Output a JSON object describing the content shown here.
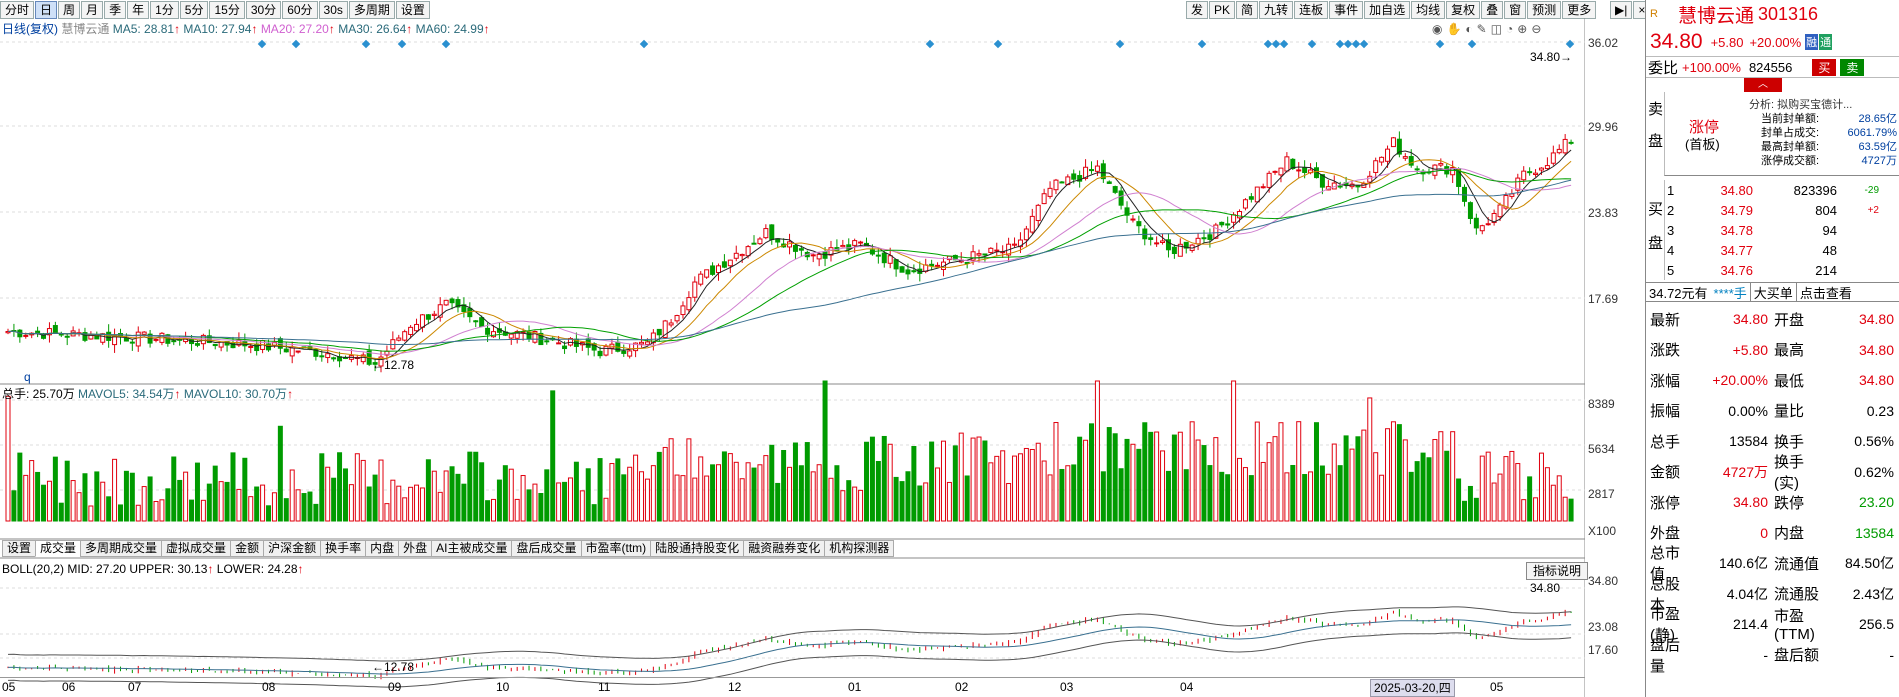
{
  "toolbar": {
    "left": [
      "分时",
      "日",
      "周",
      "月",
      "季",
      "年",
      "1分",
      "5分",
      "15分",
      "30分",
      "60分",
      "30s",
      "多周期",
      "设置"
    ],
    "active": "日",
    "right": [
      "发",
      "PK",
      "简",
      "九转",
      "连板",
      "事件",
      "加自选",
      "均线",
      "复权",
      "叠",
      "窗",
      "预测",
      "更多"
    ]
  },
  "price_legend": {
    "period": "日线(复权)",
    "name": "慧博云通",
    "ma5": "MA5: 28.81",
    "ma10": "MA10: 27.94",
    "ma20": "MA20: 27.20",
    "ma30": "MA30: 26.64",
    "ma60": "MA60: 24.99"
  },
  "price_axis": [
    "36.02",
    "29.96",
    "23.83",
    "17.69"
  ],
  "price_markers": {
    "high": "34.80",
    "low": "12.78",
    "q": "q"
  },
  "volume_legend": {
    "total": "总手: 25.70万",
    "mavol5": "MAVOL5: 34.54万",
    "mavol10": "MAVOL10: 30.70万"
  },
  "volume_axis": [
    "8389",
    "5634",
    "2817"
  ],
  "volume_unit": "X100",
  "indicator_tabs": [
    "设置",
    "成交量",
    "多周期成交量",
    "虚拟成交量",
    "金额",
    "沪深金额",
    "换手率",
    "内盘",
    "外盘",
    "AI主被成交量",
    "盘后成交量",
    "市盈率(ttm)",
    "陆股通持股变化",
    "融资融券变化",
    "机构探测器"
  ],
  "indicator_active": "成交量",
  "boll_legend": {
    "head": "BOLL(20,2) MID: 27.20",
    "upper": "UPPER: 30.13",
    "lower": "LOWER: 24.28"
  },
  "boll_axis": [
    "34.80",
    "23.08",
    "17.60"
  ],
  "boll_markers": {
    "high": "34.80",
    "low": "12.78"
  },
  "indicator_help": "指标说明",
  "x_axis": [
    "05",
    "06",
    "07",
    "08",
    "09",
    "10",
    "11",
    "12",
    "01",
    "02",
    "03",
    "04",
    "05"
  ],
  "x_cursor": "2025-03-20,四",
  "stock": {
    "name": "慧博云通",
    "code": "301316",
    "price": "34.80",
    "change": "+5.80",
    "pct": "+20.00%",
    "badge1": "融",
    "badge2": "通"
  },
  "weibi": {
    "label": "委比",
    "value": "+100.00%",
    "diff": "824556",
    "buy": "买",
    "sell": "卖"
  },
  "sell_side": {
    "label1": "卖",
    "label2": "盘"
  },
  "limit_status": {
    "title": "涨停",
    "sub": "(首板)"
  },
  "analysis": {
    "head": "分析: 拟购买宝德计...",
    "rows": [
      [
        "当前封单额:",
        "28.65亿"
      ],
      [
        "封单占成交:",
        "6061.79%"
      ],
      [
        "最高封单额:",
        "63.59亿"
      ],
      [
        "涨停成交额:",
        "4727万"
      ]
    ]
  },
  "buy_side": {
    "label1": "买",
    "label2": "盘"
  },
  "buy_orders": [
    [
      "1",
      "34.80",
      "823396",
      "-29"
    ],
    [
      "2",
      "34.79",
      "804",
      "+2"
    ],
    [
      "3",
      "34.78",
      "94",
      ""
    ],
    [
      "4",
      "34.77",
      "48",
      ""
    ],
    [
      "5",
      "34.76",
      "214",
      ""
    ]
  ],
  "order_bar": [
    "34.72元有",
    "****手",
    "大买单",
    "点击查看"
  ],
  "quotes": [
    [
      "最新",
      "34.80",
      "开盘",
      "34.80"
    ],
    [
      "涨跌",
      "+5.80",
      "最高",
      "34.80"
    ],
    [
      "涨幅",
      "+20.00%",
      "最低",
      "34.80"
    ],
    [
      "振幅",
      "0.00%",
      "量比",
      "0.23"
    ],
    [
      "总手",
      "13584",
      "换手",
      "0.56%"
    ],
    [
      "金额",
      "4727万",
      "换手(实)",
      "0.62%"
    ],
    [
      "涨停",
      "34.80",
      "跌停",
      "23.20"
    ],
    [
      "外盘",
      "0",
      "内盘",
      "13584"
    ],
    [
      "总市值",
      "140.6亿",
      "流通值",
      "84.50亿"
    ],
    [
      "总股本",
      "4.04亿",
      "流通股",
      "2.43亿"
    ],
    [
      "市盈(静)",
      "214.4",
      "市盈(TTM)",
      "256.5"
    ],
    [
      "盘后量",
      "-",
      "盘后额",
      "-"
    ]
  ],
  "colors": {
    "up": "#e0000e",
    "down": "#009b00",
    "ma5": "#222222",
    "ma10": "#cc8800",
    "ma20": "#d080d0",
    "ma30": "#00a000",
    "ma60": "#3a7090"
  }
}
